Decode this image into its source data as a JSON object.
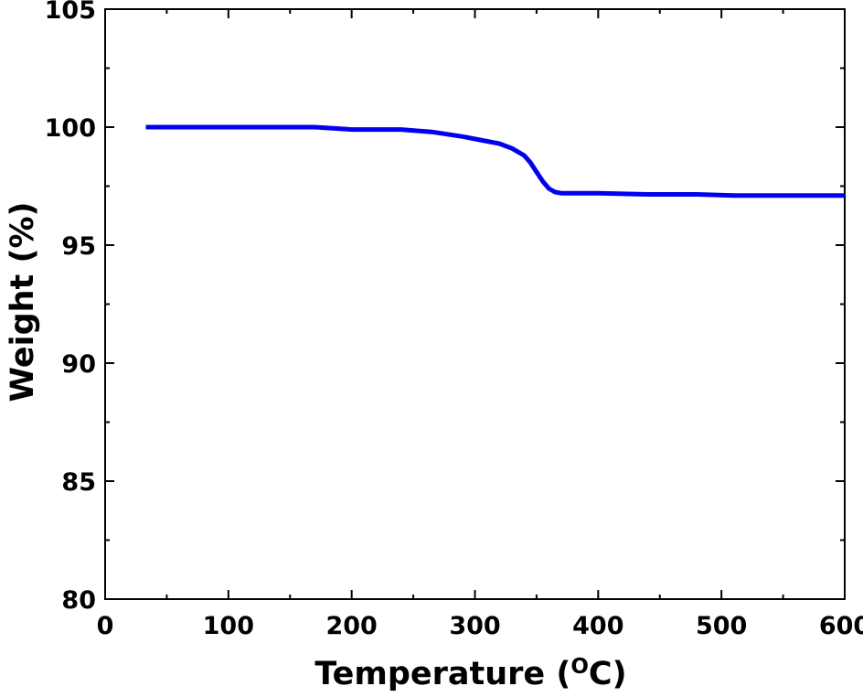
{
  "chart_data": {
    "type": "line",
    "title": "",
    "xlabel": "Temperature (",
    "xlabel_superscript": "O",
    "xlabel_suffix": "C)",
    "ylabel": "Weight (%)",
    "xlim": [
      0,
      600
    ],
    "ylim": [
      80,
      105
    ],
    "x_ticks": [
      0,
      100,
      200,
      300,
      400,
      500,
      600
    ],
    "x_tick_labels": [
      "0",
      "100",
      "200",
      "300",
      "400",
      "500",
      "600"
    ],
    "x_minor_step": 50,
    "y_ticks": [
      80,
      85,
      90,
      95,
      100,
      105
    ],
    "y_tick_labels": [
      "80",
      "85",
      "90",
      "95",
      "100",
      "105"
    ],
    "y_minor_step": 2.5,
    "grid": false,
    "legend": "none",
    "colors": {
      "series": "#0000ee",
      "axes": "#000000"
    },
    "series": [
      {
        "x": [
          33,
          60,
          100,
          140,
          170,
          200,
          240,
          265,
          290,
          310,
          320,
          330,
          340,
          345,
          350,
          355,
          360,
          365,
          370,
          400,
          440,
          480,
          510,
          550,
          600
        ],
        "values": [
          100.0,
          100.0,
          100.0,
          100.0,
          100.0,
          99.9,
          99.9,
          99.8,
          99.6,
          99.4,
          99.3,
          99.1,
          98.8,
          98.5,
          98.1,
          97.7,
          97.4,
          97.25,
          97.2,
          97.2,
          97.15,
          97.15,
          97.1,
          97.1,
          97.1
        ]
      }
    ]
  }
}
